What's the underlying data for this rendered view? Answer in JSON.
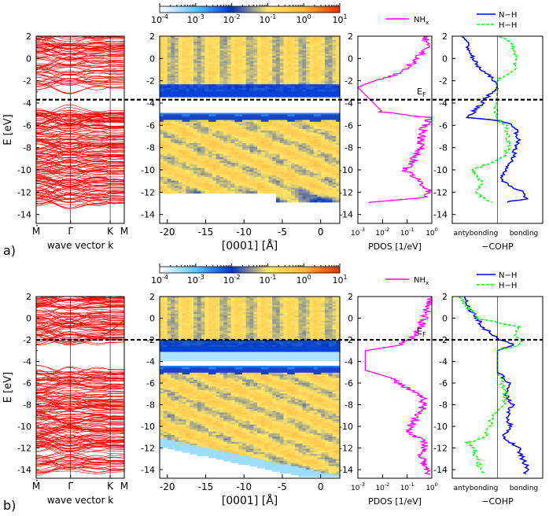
{
  "colors": {
    "bands": "#ff0000",
    "nhx": "#ff00ff",
    "nh": "#0000ff",
    "hh": "#00ff00",
    "fermi": "#000000",
    "cmap": [
      "#ffffff",
      "#5bc6ff",
      "#0033cc",
      "#ffe566",
      "#ffb640",
      "#ff2a00"
    ]
  },
  "colorbar": {
    "tick_labels": [
      "10",
      "10",
      "10",
      "10",
      "10",
      "10"
    ],
    "tick_exponents": [
      "-4",
      "-3",
      "-2",
      "-1",
      "0",
      "1"
    ]
  },
  "panels": [
    {
      "label": "a)",
      "ylabel": "E [eV]",
      "y_ticks": [
        "2",
        "0",
        "-2",
        "-4",
        "-6",
        "-8",
        "-10",
        "-12",
        "-14"
      ],
      "band_xlabel": "wave vector k",
      "band_kpoints": [
        "M",
        "Γ",
        "K",
        "M"
      ],
      "ldos_xlabel": "[0001] [Å]",
      "ldos_x_ticks": [
        "-20",
        "-15",
        "-10",
        "-5",
        "0"
      ],
      "pdos_xlabel": "PDOS [1/eV]",
      "pdos_x_ticks": [
        "10",
        "10",
        "10",
        "10"
      ],
      "pdos_x_exponents": [
        "-3",
        "-2",
        "-1",
        "0"
      ],
      "pdos_legend": "NH",
      "pdos_legend_sub": "x",
      "fermi_label": "E",
      "fermi_label_sub": "F",
      "cohp_xlabel": "−COHP",
      "cohp_left_label": "antybonding",
      "cohp_right_label": "bonding",
      "cohp_legend": [
        "N−H",
        "H−H"
      ]
    },
    {
      "label": "b)",
      "ylabel": "E [eV]",
      "y_ticks": [
        "2",
        "0",
        "-2",
        "-4",
        "-6",
        "-8",
        "-10",
        "-12",
        "-14"
      ],
      "band_xlabel": "wave vector k",
      "band_kpoints": [
        "M",
        "Γ",
        "K",
        "M"
      ],
      "ldos_xlabel": "[0001] [Å]",
      "ldos_x_ticks": [
        "-20",
        "-15",
        "-10",
        "-5",
        "0"
      ],
      "pdos_xlabel": "PDOS [1/eV]",
      "pdos_x_ticks": [
        "10",
        "10",
        "10",
        "10"
      ],
      "pdos_x_exponents": [
        "-3",
        "-2",
        "-1",
        "0"
      ],
      "pdos_legend": "NH",
      "pdos_legend_sub": "x",
      "fermi_label": "E",
      "fermi_label_sub": "F",
      "cohp_xlabel": "−COHP",
      "cohp_left_label": "antybonding",
      "cohp_right_label": "bonding",
      "cohp_legend": [
        "N−H",
        "H−H"
      ]
    }
  ],
  "chart_data": [
    {
      "type": "line",
      "panel": "a) band structure",
      "ylim": [
        -14.8,
        2
      ],
      "fermi_level": -3.7,
      "valence_band_range": [
        -13.0,
        -4.6
      ],
      "conduction_band_range": [
        -2.8,
        2
      ]
    },
    {
      "type": "heatmap",
      "panel": "a) layer-resolved density of states",
      "xlim": [
        -21,
        2.5
      ],
      "ylim": [
        -14.8,
        2
      ],
      "color_scale": "log",
      "color_range": [
        0.0001,
        10
      ],
      "fermi_level": -3.7,
      "occupied_states_range": [
        -12.8,
        -4.8
      ],
      "empty_states_range": [
        -3.3,
        2
      ]
    },
    {
      "type": "line",
      "panel": "a) PDOS",
      "x_scale": "log",
      "xlim": [
        0.001,
        1
      ],
      "ylim": [
        -14.8,
        2
      ],
      "series": [
        {
          "name": "NHx",
          "energy": [
            2.0,
            1.0,
            0.5,
            0.0,
            -0.5,
            -1.0,
            -1.5,
            -2.0,
            -2.3,
            -2.6,
            -4.8,
            -5.3,
            -6.0,
            -7.0,
            -8.0,
            -9.0,
            -10.0,
            -11.0,
            -12.0,
            -12.5,
            -13.0
          ],
          "pdos": [
            0.5,
            0.6,
            0.4,
            0.25,
            0.15,
            0.08,
            0.03,
            0.005,
            0.002,
            0.001,
            0.01,
            0.8,
            0.5,
            0.4,
            0.35,
            0.2,
            0.08,
            0.3,
            0.9,
            0.4,
            0.001
          ]
        }
      ],
      "fermi_level": -3.7
    },
    {
      "type": "line",
      "panel": "a) COHP",
      "xlim": [
        -1,
        1
      ],
      "ylim": [
        -14.8,
        2
      ],
      "series": [
        {
          "name": "N−H",
          "energy": [
            2.0,
            1.0,
            0.0,
            -1.0,
            -2.0,
            -2.5,
            -5.3,
            -5.6,
            -6.0,
            -7.0,
            -8.0,
            -9.0,
            -10.0,
            -11.0,
            -12.0,
            -12.6,
            -13.0
          ],
          "cohp": [
            -0.8,
            -0.7,
            -0.6,
            -0.4,
            -0.05,
            0.0,
            -0.7,
            0.05,
            0.4,
            0.5,
            0.45,
            0.35,
            0.2,
            0.1,
            0.6,
            0.7,
            0.0
          ]
        },
        {
          "name": "H−H",
          "energy": [
            2.0,
            1.0,
            0.0,
            -1.0,
            -2.0,
            -2.5,
            -5.3,
            -6.0,
            -7.0,
            -8.0,
            -9.0,
            -10.0,
            -11.0,
            -12.0,
            -12.6,
            -13.0
          ],
          "cohp": [
            0.1,
            0.4,
            0.45,
            0.4,
            0.0,
            0.0,
            -0.05,
            0.2,
            0.25,
            0.3,
            0.1,
            -0.6,
            -0.4,
            -0.5,
            -0.3,
            0.0
          ]
        }
      ],
      "fermi_level": -3.7
    },
    {
      "type": "line",
      "panel": "b) band structure",
      "ylim": [
        -14.8,
        2
      ],
      "fermi_level": -2.0,
      "valence_band_range": [
        -14.5,
        -4.6
      ],
      "conduction_band_range": [
        -2.3,
        2
      ]
    },
    {
      "type": "heatmap",
      "panel": "b) layer-resolved density of states",
      "xlim": [
        -21,
        2.5
      ],
      "ylim": [
        -14.8,
        2
      ],
      "color_scale": "log",
      "color_range": [
        0.0001,
        10
      ],
      "fermi_level": -2.0,
      "occupied_states_range": [
        -14.5,
        -4.3
      ],
      "empty_states_range": [
        -3.0,
        2
      ]
    },
    {
      "type": "line",
      "panel": "b) PDOS",
      "x_scale": "log",
      "xlim": [
        0.001,
        1
      ],
      "ylim": [
        -14.8,
        2
      ],
      "series": [
        {
          "name": "NHx",
          "energy": [
            2.0,
            1.0,
            0.0,
            -1.0,
            -1.5,
            -2.0,
            -2.5,
            -3.0,
            -4.8,
            -5.5,
            -6.5,
            -7.5,
            -8.5,
            -9.5,
            -10.5,
            -11.5,
            -12.5,
            -13.5,
            -14.5
          ],
          "pdos": [
            0.9,
            0.7,
            0.5,
            0.3,
            0.25,
            0.12,
            0.05,
            0.002,
            0.002,
            0.02,
            0.1,
            0.5,
            0.4,
            0.2,
            0.1,
            0.6,
            0.4,
            0.5,
            0.7
          ]
        }
      ],
      "fermi_level": -2.0
    },
    {
      "type": "line",
      "panel": "b) COHP",
      "xlim": [
        -1,
        1
      ],
      "ylim": [
        -14.8,
        2
      ],
      "series": [
        {
          "name": "N−H",
          "energy": [
            2.0,
            1.0,
            0.0,
            -1.0,
            -2.0,
            -2.5,
            -3.0,
            -5.0,
            -6.0,
            -7.0,
            -8.0,
            -9.0,
            -10.0,
            -11.0,
            -12.0,
            -13.0,
            -14.0,
            -14.5
          ],
          "cohp": [
            -0.8,
            -0.7,
            -0.5,
            -0.3,
            0.05,
            0.4,
            0.0,
            0.0,
            0.3,
            0.2,
            0.35,
            0.25,
            0.3,
            0.15,
            0.5,
            0.6,
            0.75,
            0.6
          ]
        },
        {
          "name": "H−H",
          "energy": [
            2.0,
            1.0,
            0.0,
            -0.8,
            -1.5,
            -2.0,
            -2.5,
            -3.0,
            -5.0,
            -6.0,
            -7.0,
            -8.0,
            -9.0,
            -10.0,
            -11.0,
            -11.5,
            -12.0,
            -13.0,
            -14.0,
            -14.5
          ],
          "cohp": [
            -0.9,
            -0.7,
            -0.5,
            0.5,
            0.4,
            0.6,
            0.5,
            0.0,
            0.0,
            0.1,
            0.2,
            0.15,
            -0.1,
            -0.2,
            -0.3,
            -0.7,
            -0.6,
            -0.5,
            -0.4,
            -0.3
          ]
        }
      ],
      "fermi_level": -2.0
    }
  ]
}
